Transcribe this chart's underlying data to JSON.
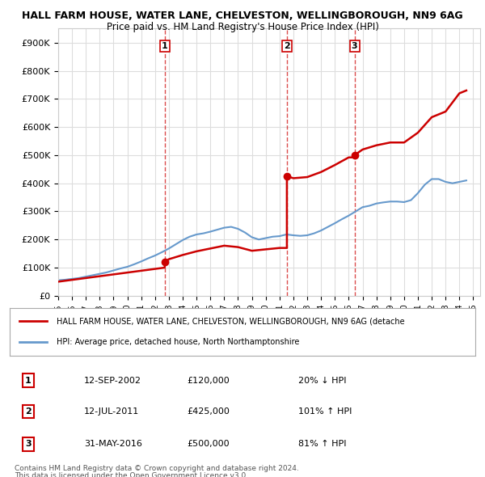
{
  "title1": "HALL FARM HOUSE, WATER LANE, CHELVESTON, WELLINGBOROUGH, NN9 6AG",
  "title2": "Price paid vs. HM Land Registry's House Price Index (HPI)",
  "ylabel": "",
  "xlim_start": 1995.0,
  "xlim_end": 2025.5,
  "ylim": [
    0,
    950000
  ],
  "yticks": [
    0,
    100000,
    200000,
    300000,
    400000,
    500000,
    600000,
    700000,
    800000,
    900000
  ],
  "ytick_labels": [
    "£0",
    "£100K",
    "£200K",
    "£300K",
    "£400K",
    "£500K",
    "£600K",
    "£700K",
    "£800K",
    "£900K"
  ],
  "sale_dates": [
    2002.7,
    2011.53,
    2016.42
  ],
  "sale_prices": [
    120000,
    425000,
    500000
  ],
  "sale_labels": [
    "1",
    "2",
    "3"
  ],
  "sale_dline_color": "#cc0000",
  "hpi_color": "#6699cc",
  "sale_color": "#cc0000",
  "background_color": "#ffffff",
  "grid_color": "#dddddd",
  "legend_label_sale": "HALL FARM HOUSE, WATER LANE, CHELVESTON, WELLINGBOROUGH, NN9 6AG (detache",
  "legend_label_hpi": "HPI: Average price, detached house, North Northamptonshire",
  "table_data": [
    [
      "1",
      "12-SEP-2002",
      "£120,000",
      "20% ↓ HPI"
    ],
    [
      "2",
      "12-JUL-2011",
      "£425,000",
      "101% ↑ HPI"
    ],
    [
      "3",
      "31-MAY-2016",
      "£500,000",
      "81% ↑ HPI"
    ]
  ],
  "footnote1": "Contains HM Land Registry data © Crown copyright and database right 2024.",
  "footnote2": "This data is licensed under the Open Government Licence v3.0.",
  "hpi_x": [
    1995.0,
    1995.5,
    1996.0,
    1996.5,
    1997.0,
    1997.5,
    1998.0,
    1998.5,
    1999.0,
    1999.5,
    2000.0,
    2000.5,
    2001.0,
    2001.5,
    2002.0,
    2002.5,
    2003.0,
    2003.5,
    2004.0,
    2004.5,
    2005.0,
    2005.5,
    2006.0,
    2006.5,
    2007.0,
    2007.5,
    2008.0,
    2008.5,
    2009.0,
    2009.5,
    2010.0,
    2010.5,
    2011.0,
    2011.5,
    2012.0,
    2012.5,
    2013.0,
    2013.5,
    2014.0,
    2014.5,
    2015.0,
    2015.5,
    2016.0,
    2016.5,
    2017.0,
    2017.5,
    2018.0,
    2018.5,
    2019.0,
    2019.5,
    2020.0,
    2020.5,
    2021.0,
    2021.5,
    2022.0,
    2022.5,
    2023.0,
    2023.5,
    2024.0,
    2024.5
  ],
  "hpi_y": [
    55000,
    57000,
    60000,
    63000,
    68000,
    73000,
    78000,
    83000,
    90000,
    97000,
    103000,
    112000,
    122000,
    133000,
    143000,
    155000,
    168000,
    183000,
    198000,
    210000,
    218000,
    222000,
    228000,
    235000,
    242000,
    245000,
    238000,
    225000,
    208000,
    200000,
    205000,
    210000,
    212000,
    218000,
    215000,
    213000,
    215000,
    222000,
    232000,
    245000,
    258000,
    272000,
    285000,
    300000,
    315000,
    320000,
    328000,
    332000,
    335000,
    335000,
    333000,
    340000,
    365000,
    395000,
    415000,
    415000,
    405000,
    400000,
    405000,
    410000
  ],
  "sale_hpi_x": [
    1995.0,
    2002.7,
    2002.7,
    2003.0,
    2004.0,
    2005.0,
    2006.0,
    2007.0,
    2008.0,
    2009.0,
    2010.0,
    2011.0,
    2011.53,
    2011.53,
    2012.0,
    2013.0,
    2014.0,
    2015.0,
    2016.0,
    2016.42,
    2016.42,
    2017.0,
    2018.0,
    2019.0,
    2020.0,
    2021.0,
    2022.0,
    2023.0,
    2024.0,
    2024.5
  ],
  "sale_hpi_y": [
    50000,
    100000,
    120000,
    130000,
    145000,
    158000,
    168000,
    178000,
    173000,
    160000,
    165000,
    170000,
    170000,
    425000,
    418000,
    422000,
    440000,
    465000,
    492000,
    492000,
    500000,
    520000,
    535000,
    545000,
    545000,
    580000,
    635000,
    655000,
    720000,
    730000
  ]
}
